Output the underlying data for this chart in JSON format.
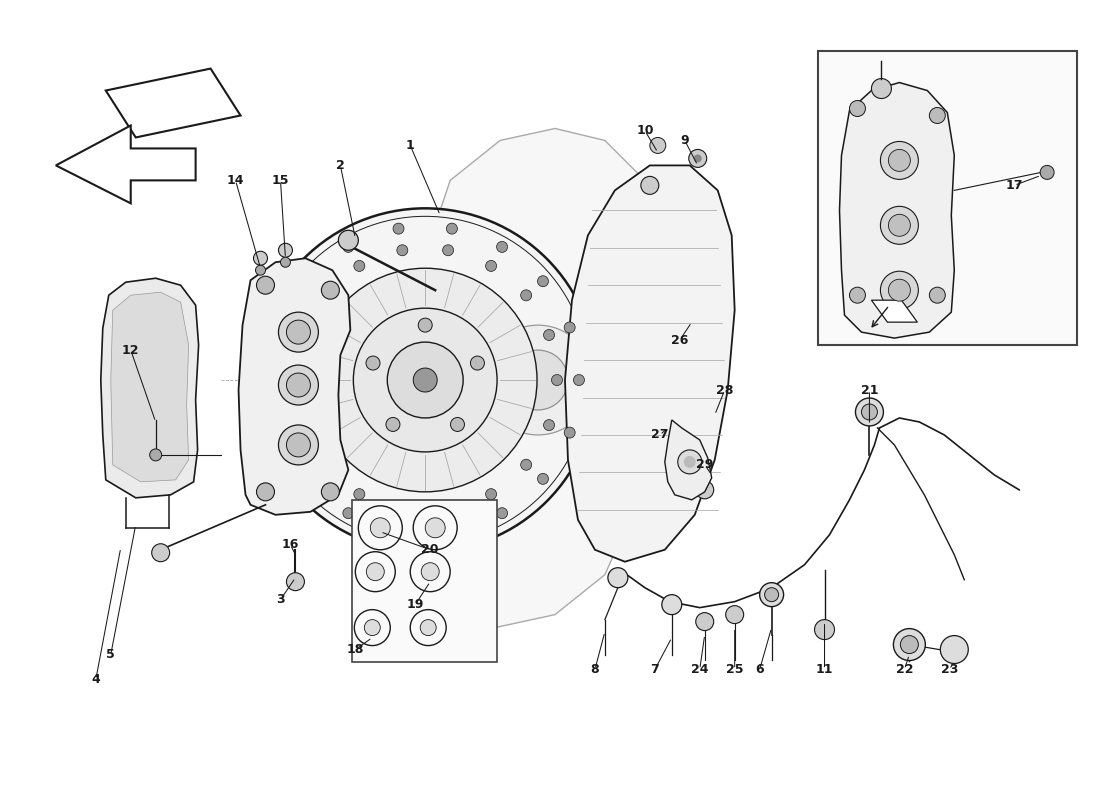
{
  "background_color": "#ffffff",
  "line_color": "#1a1a1a",
  "gray_color": "#888888",
  "light_gray": "#cccccc",
  "watermark_color": "#d4a830",
  "figsize": [
    11.0,
    8.0
  ],
  "dpi": 100,
  "xlim": [
    0,
    11
  ],
  "ylim": [
    0,
    8
  ],
  "label_fontsize": 9.0,
  "labels": [
    [
      "1",
      4.1,
      6.55
    ],
    [
      "2",
      3.4,
      6.35
    ],
    [
      "3",
      2.8,
      2.0
    ],
    [
      "4",
      0.95,
      1.2
    ],
    [
      "5",
      1.1,
      1.45
    ],
    [
      "6",
      7.6,
      1.3
    ],
    [
      "7",
      6.55,
      1.3
    ],
    [
      "8",
      5.95,
      1.3
    ],
    [
      "9",
      6.85,
      6.6
    ],
    [
      "10",
      6.45,
      6.7
    ],
    [
      "11",
      8.25,
      1.3
    ],
    [
      "12",
      1.3,
      4.5
    ],
    [
      "14",
      2.35,
      6.2
    ],
    [
      "15",
      2.8,
      6.2
    ],
    [
      "16",
      2.9,
      2.55
    ],
    [
      "17",
      10.15,
      6.15
    ],
    [
      "18",
      3.55,
      1.5
    ],
    [
      "19",
      4.15,
      1.95
    ],
    [
      "20",
      4.3,
      2.5
    ],
    [
      "21",
      8.7,
      4.1
    ],
    [
      "22",
      9.05,
      1.3
    ],
    [
      "23",
      9.5,
      1.3
    ],
    [
      "24",
      7.0,
      1.3
    ],
    [
      "25",
      7.35,
      1.3
    ],
    [
      "26",
      6.8,
      4.6
    ],
    [
      "27",
      6.6,
      3.65
    ],
    [
      "28",
      7.25,
      4.1
    ],
    [
      "29",
      7.05,
      3.35
    ]
  ]
}
